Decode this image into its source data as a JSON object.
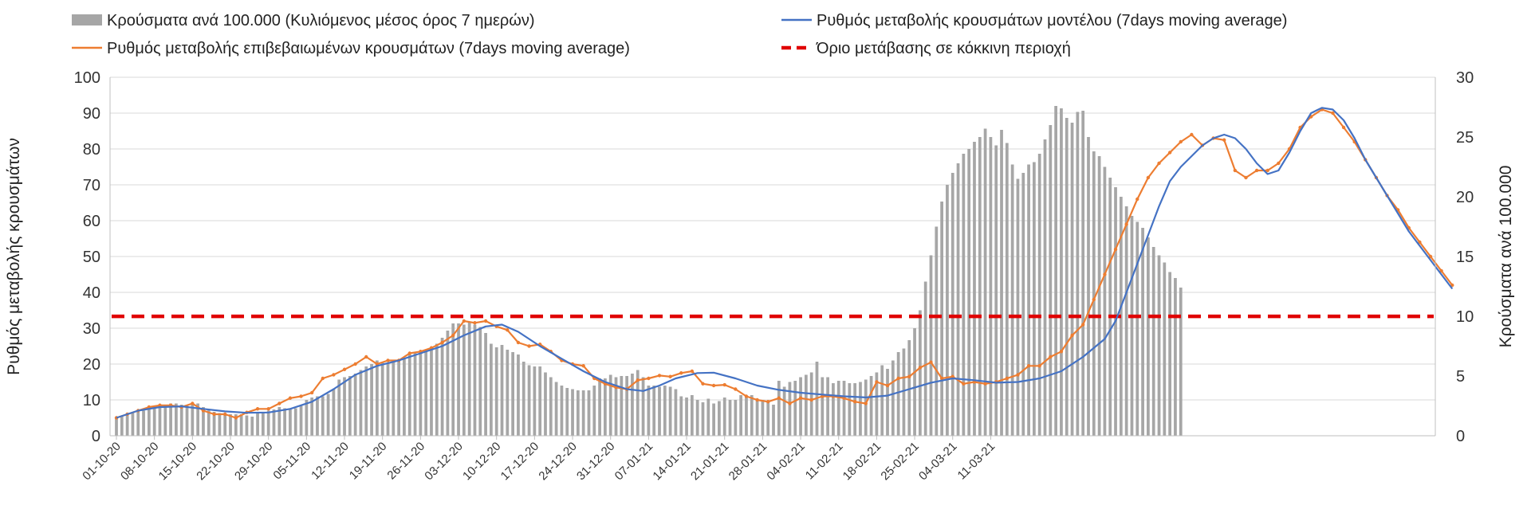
{
  "chart_data": {
    "type": "bar+line",
    "title": "",
    "ylabel_left": "Ρυθμός μεταβολής κρουσμάτων",
    "ylabel_right": "Κρούσματα ανά 100.000",
    "ylim_left": [
      0,
      100
    ],
    "ylim_right": [
      0,
      30
    ],
    "yticks_left": [
      "0",
      "10",
      "20",
      "30",
      "40",
      "50",
      "60",
      "70",
      "80",
      "90",
      "100"
    ],
    "yticks_right": [
      "0",
      "5",
      "10",
      "15",
      "20",
      "25",
      "30"
    ],
    "grid": true,
    "x_start": "2020-10-01",
    "x_tick_labels": [
      "01-10-20",
      "08-10-20",
      "15-10-20",
      "22-10-20",
      "29-10-20",
      "05-11-20",
      "12-11-20",
      "19-11-20",
      "26-11-20",
      "03-12-20",
      "10-12-20",
      "17-12-20",
      "24-12-20",
      "31-12-20",
      "07-01-21",
      "14-01-21",
      "21-01-21",
      "28-01-21",
      "04-02-21",
      "11-02-21",
      "18-02-21",
      "25-02-21",
      "04-03-21",
      "11-03-21"
    ],
    "colors": {
      "bars": "#a6a6a6",
      "model": "#4472c4",
      "confirmed": "#ed7d31",
      "threshold": "#e00000",
      "grid": "#d9d9d9"
    },
    "legend": {
      "bars": "Κρούσματα ανά 100.000 (Κυλιόμενος μέσος όρος 7 ημερών)",
      "model": "Ρυθμός μεταβολής κρουσμάτων μοντέλου (7days moving average)",
      "confirmed": "Ρυθμός μεταβολής επιβεβαιωμένων κρουσμάτων (7days moving average)",
      "threshold": "Όριο μετάβασης σε κόκκινη περιοχή"
    },
    "threshold_left": 33.3,
    "series": [
      {
        "name": "Κρούσματα ανά 100.000 (Κυλιόμενος μέσος όρος 7 ημερών)",
        "axis": "right",
        "type": "bar",
        "values": [
          1.5,
          1.6,
          1.7,
          1.9,
          2.0,
          2.1,
          2.3,
          2.5,
          2.6,
          2.6,
          2.7,
          2.7,
          2.6,
          2.5,
          2.6,
          2.7,
          2.4,
          2.2,
          2.0,
          1.9,
          1.9,
          1.8,
          1.8,
          1.8,
          1.7,
          1.6,
          1.9,
          2.0,
          2.1,
          2.2,
          2.4,
          2.3,
          2.2,
          2.3,
          2.5,
          3.0,
          3.2,
          3.3,
          3.3,
          3.5,
          3.9,
          4.7,
          4.9,
          5.0,
          5.2,
          5.5,
          5.8,
          6.0,
          6.3,
          6.1,
          6.1,
          6.2,
          6.2,
          6.4,
          6.8,
          7.0,
          7.0,
          7.2,
          7.4,
          7.7,
          8.2,
          8.8,
          9.4,
          9.4,
          9.3,
          9.5,
          9.3,
          9.1,
          8.6,
          7.7,
          7.4,
          7.6,
          7.2,
          7.0,
          6.8,
          6.2,
          5.9,
          5.8,
          5.8,
          5.3,
          4.9,
          4.5,
          4.2,
          4.0,
          3.9,
          3.8,
          3.8,
          3.8,
          4.2,
          4.8,
          4.8,
          5.1,
          4.9,
          5.0,
          5.0,
          5.2,
          5.5,
          4.9,
          4.2,
          4.2,
          4.1,
          4.2,
          4.1,
          3.9,
          3.3,
          3.2,
          3.4,
          3.0,
          2.8,
          3.1,
          2.7,
          2.9,
          3.2,
          3.0,
          3.0,
          3.4,
          3.3,
          3.4,
          3.1,
          3.0,
          2.8,
          2.6,
          4.6,
          4.1,
          4.5,
          4.6,
          4.9,
          5.1,
          5.3,
          6.2,
          4.9,
          4.9,
          4.4,
          4.6,
          4.6,
          4.4,
          4.4,
          4.5,
          4.7,
          5.0,
          5.3,
          5.9,
          5.6,
          6.3,
          7.0,
          7.3,
          8.0,
          9.0,
          10.5,
          12.9,
          15.1,
          17.5,
          19.6,
          21.0,
          22.0,
          22.8,
          23.6,
          24.0,
          24.6,
          25.0,
          25.7,
          25.0,
          24.3,
          25.6,
          24.5,
          22.7,
          21.5,
          22.0,
          22.7,
          22.9,
          23.6,
          24.8,
          26.0,
          27.6,
          27.4,
          26.6,
          26.2,
          27.1,
          27.2,
          25.0,
          23.8,
          23.4,
          22.5,
          21.6,
          20.8,
          20.0,
          19.2,
          18.4,
          17.9,
          17.4,
          16.6,
          15.8,
          15.1,
          14.5,
          13.7,
          13.2,
          12.4
        ]
      },
      {
        "name": "Ρυθμός μεταβολής κρουσμάτων μοντέλου (7days moving average)",
        "axis": "left",
        "type": "line",
        "x_offsets": [
          0,
          7,
          14,
          21,
          28,
          35,
          42,
          49,
          56,
          63,
          70,
          77,
          84,
          91,
          98,
          105,
          112,
          119,
          126,
          133,
          140,
          147,
          154,
          161,
          168,
          175,
          182,
          189,
          196,
          203,
          210,
          217,
          224,
          231,
          238,
          245,
          252,
          259,
          266,
          273,
          280,
          287,
          294,
          301,
          308,
          315,
          322,
          329,
          336,
          343,
          350,
          357,
          364,
          371,
          378,
          385,
          392,
          399,
          406,
          413,
          420,
          427,
          434,
          441,
          448,
          455,
          462,
          469,
          476,
          483,
          490,
          497,
          504,
          511,
          518,
          525,
          532,
          539,
          546,
          553,
          560,
          567,
          574,
          581,
          588,
          595,
          602,
          609,
          616,
          623,
          630,
          637,
          644,
          651,
          658,
          665,
          672,
          679,
          686,
          693,
          700,
          707,
          714,
          721,
          728,
          735,
          742,
          749,
          756,
          763,
          770,
          777,
          784,
          791,
          798,
          805,
          812,
          819,
          826,
          833,
          840,
          847,
          854,
          861,
          868,
          875,
          882,
          889,
          896,
          903,
          910,
          917,
          924,
          931,
          938,
          945,
          952,
          959,
          966,
          973,
          980,
          987,
          994,
          1001,
          1008,
          1015,
          1022,
          1029,
          1036,
          1043,
          1050,
          1057,
          1064,
          1071,
          1078,
          1085,
          1092,
          1099,
          1106,
          1113,
          1120,
          1127,
          1134,
          1141,
          1148,
          1155,
          1162,
          1169,
          1176,
          1183,
          1190,
          1197,
          1204,
          1211,
          1218,
          1225,
          1232,
          1239,
          1246,
          1253,
          1260
        ],
        "values_by_day": [
          [
            0,
            5
          ],
          [
            4,
            7
          ],
          [
            8,
            8
          ],
          [
            12,
            8.2
          ],
          [
            16,
            7.5
          ],
          [
            20,
            6.8
          ],
          [
            24,
            6.4
          ],
          [
            28,
            6.5
          ],
          [
            32,
            7.5
          ],
          [
            36,
            9.5
          ],
          [
            40,
            13
          ],
          [
            44,
            17
          ],
          [
            48,
            19.5
          ],
          [
            52,
            21
          ],
          [
            56,
            23
          ],
          [
            60,
            25
          ],
          [
            64,
            28
          ],
          [
            68,
            30.5
          ],
          [
            71,
            31
          ],
          [
            74,
            29
          ],
          [
            78,
            25
          ],
          [
            82,
            21.5
          ],
          [
            86,
            18
          ],
          [
            90,
            15
          ],
          [
            94,
            13
          ],
          [
            97,
            12.5
          ],
          [
            100,
            14
          ],
          [
            103,
            16
          ],
          [
            107,
            17.5
          ],
          [
            110,
            17.6
          ],
          [
            114,
            16
          ],
          [
            118,
            14
          ],
          [
            122,
            12.8
          ],
          [
            126,
            12
          ],
          [
            130,
            11.5
          ],
          [
            134,
            11
          ],
          [
            138,
            10.7
          ],
          [
            142,
            11.2
          ],
          [
            146,
            13
          ],
          [
            150,
            14.8
          ],
          [
            154,
            16
          ],
          [
            158,
            15.5
          ],
          [
            162,
            14.8
          ],
          [
            166,
            15
          ],
          [
            170,
            16
          ],
          [
            174,
            18
          ],
          [
            178,
            22
          ],
          [
            182,
            27
          ],
          [
            184,
            32
          ],
          [
            186,
            40
          ],
          [
            188,
            48
          ],
          [
            190,
            56
          ],
          [
            192,
            64
          ],
          [
            194,
            71
          ],
          [
            196,
            75
          ],
          [
            198,
            78
          ],
          [
            200,
            81
          ],
          [
            202,
            83
          ],
          [
            204,
            84
          ],
          [
            206,
            83
          ],
          [
            208,
            80
          ],
          [
            210,
            76
          ],
          [
            212,
            73
          ],
          [
            214,
            74
          ],
          [
            216,
            79
          ],
          [
            218,
            85
          ],
          [
            220,
            90
          ],
          [
            222,
            91.5
          ],
          [
            224,
            91
          ],
          [
            226,
            88
          ],
          [
            228,
            83
          ],
          [
            230,
            77
          ],
          [
            232,
            72
          ],
          [
            234,
            67
          ],
          [
            236,
            62
          ],
          [
            238,
            57
          ],
          [
            240,
            53
          ],
          [
            242,
            49
          ],
          [
            244,
            45
          ],
          [
            246,
            41
          ]
        ]
      },
      {
        "name": "Ρυθμός μεταβολής επιβεβαιωμένων κρουσμάτων (7days moving average)",
        "axis": "left",
        "type": "line",
        "values_by_day": [
          [
            0,
            5
          ],
          [
            2,
            6
          ],
          [
            4,
            7
          ],
          [
            6,
            8
          ],
          [
            8,
            8.5
          ],
          [
            10,
            8.5
          ],
          [
            12,
            8
          ],
          [
            14,
            9
          ],
          [
            16,
            7
          ],
          [
            18,
            6
          ],
          [
            20,
            6
          ],
          [
            22,
            5
          ],
          [
            24,
            6.5
          ],
          [
            26,
            7.5
          ],
          [
            28,
            7.5
          ],
          [
            30,
            9
          ],
          [
            32,
            10.5
          ],
          [
            34,
            11
          ],
          [
            36,
            12
          ],
          [
            38,
            16
          ],
          [
            40,
            17
          ],
          [
            42,
            18.5
          ],
          [
            44,
            20
          ],
          [
            46,
            22
          ],
          [
            48,
            20
          ],
          [
            50,
            21
          ],
          [
            52,
            21
          ],
          [
            54,
            23
          ],
          [
            56,
            23.5
          ],
          [
            58,
            24.5
          ],
          [
            60,
            26
          ],
          [
            62,
            28
          ],
          [
            64,
            32
          ],
          [
            66,
            31.5
          ],
          [
            68,
            32
          ],
          [
            70,
            30.5
          ],
          [
            72,
            29.5
          ],
          [
            74,
            26
          ],
          [
            76,
            25
          ],
          [
            78,
            25.5
          ],
          [
            80,
            23.5
          ],
          [
            82,
            21
          ],
          [
            84,
            20
          ],
          [
            86,
            19.5
          ],
          [
            88,
            16
          ],
          [
            90,
            14.5
          ],
          [
            92,
            13.5
          ],
          [
            94,
            13
          ],
          [
            96,
            15.5
          ],
          [
            98,
            16
          ],
          [
            100,
            16.8
          ],
          [
            102,
            16.5
          ],
          [
            104,
            17.5
          ],
          [
            106,
            18
          ],
          [
            108,
            14.5
          ],
          [
            110,
            14
          ],
          [
            112,
            14.2
          ],
          [
            114,
            13
          ],
          [
            116,
            11
          ],
          [
            118,
            10
          ],
          [
            120,
            9.5
          ],
          [
            122,
            10.5
          ],
          [
            124,
            9
          ],
          [
            126,
            10.5
          ],
          [
            128,
            10
          ],
          [
            130,
            11
          ],
          [
            132,
            11
          ],
          [
            134,
            10.5
          ],
          [
            136,
            9.5
          ],
          [
            138,
            9
          ],
          [
            140,
            15
          ],
          [
            142,
            14
          ],
          [
            144,
            16
          ],
          [
            146,
            16.5
          ],
          [
            148,
            19
          ],
          [
            150,
            20.5
          ],
          [
            152,
            16
          ],
          [
            154,
            16.5
          ],
          [
            156,
            14.5
          ],
          [
            158,
            15
          ],
          [
            160,
            14.5
          ],
          [
            162,
            15
          ],
          [
            164,
            16
          ],
          [
            166,
            17
          ],
          [
            168,
            19.5
          ],
          [
            170,
            19.5
          ],
          [
            172,
            22
          ],
          [
            174,
            23.5
          ],
          [
            176,
            28
          ],
          [
            178,
            31
          ],
          [
            180,
            38
          ],
          [
            182,
            45
          ],
          [
            184,
            52
          ],
          [
            186,
            59
          ],
          [
            188,
            66
          ],
          [
            190,
            72
          ],
          [
            192,
            76
          ],
          [
            194,
            79
          ],
          [
            196,
            82
          ],
          [
            198,
            84
          ],
          [
            200,
            81
          ],
          [
            202,
            83
          ],
          [
            204,
            82.5
          ],
          [
            206,
            74
          ],
          [
            208,
            72
          ],
          [
            210,
            74
          ],
          [
            212,
            74
          ],
          [
            214,
            76
          ],
          [
            216,
            80
          ],
          [
            218,
            86
          ],
          [
            220,
            89
          ],
          [
            222,
            91
          ],
          [
            224,
            90
          ],
          [
            226,
            86
          ],
          [
            228,
            82
          ],
          [
            230,
            77
          ],
          [
            232,
            72
          ],
          [
            234,
            67
          ],
          [
            236,
            63
          ],
          [
            238,
            58
          ],
          [
            240,
            54
          ],
          [
            242,
            50
          ],
          [
            244,
            46
          ],
          [
            246,
            42
          ]
        ]
      }
    ]
  }
}
